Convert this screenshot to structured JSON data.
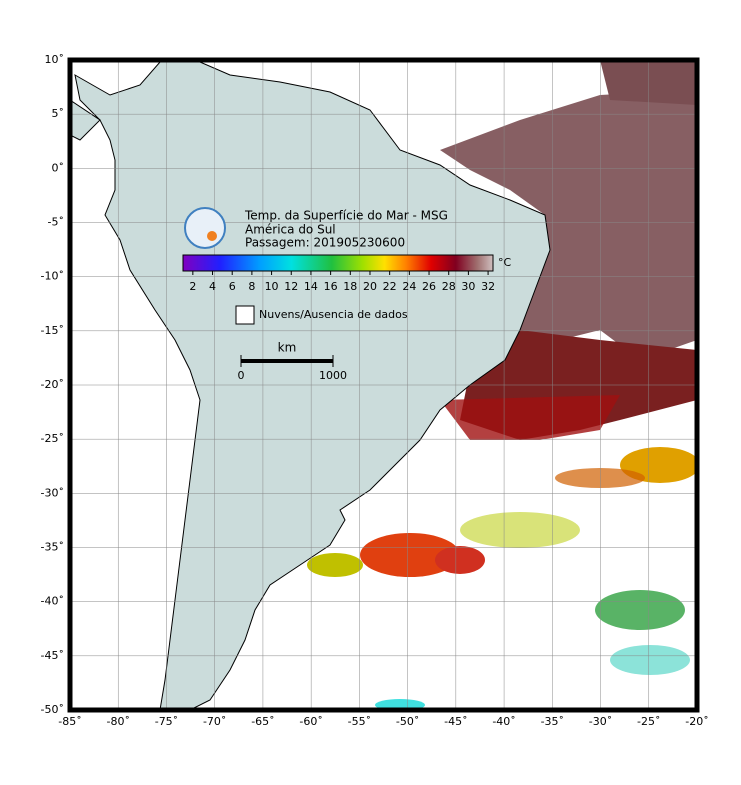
{
  "map": {
    "title": [
      "Temp. da Superfície do Mar - MSG",
      "América do Sul",
      "Passagem: 201905230600"
    ],
    "xlim": [
      -85,
      -20
    ],
    "ylim": [
      -50,
      10
    ],
    "xticks": [
      {
        "value": -85,
        "label": "-85˚"
      },
      {
        "value": -80,
        "label": "-80˚"
      },
      {
        "value": -75,
        "label": "-75˚"
      },
      {
        "value": -70,
        "label": "-70˚"
      },
      {
        "value": -65,
        "label": "-65˚"
      },
      {
        "value": -60,
        "label": "-60˚"
      },
      {
        "value": -55,
        "label": "-55˚"
      },
      {
        "value": -50,
        "label": "-50˚"
      },
      {
        "value": -45,
        "label": "-45˚"
      },
      {
        "value": -40,
        "label": "-40˚"
      },
      {
        "value": -35,
        "label": "-35˚"
      },
      {
        "value": -30,
        "label": "-30˚"
      },
      {
        "value": -25,
        "label": "-25˚"
      },
      {
        "value": -20,
        "label": "-20˚"
      }
    ],
    "yticks": [
      {
        "value": 10,
        "label": "10˚"
      },
      {
        "value": 5,
        "label": "5˚"
      },
      {
        "value": 0,
        "label": "0˚"
      },
      {
        "value": -5,
        "label": "-5˚"
      },
      {
        "value": -10,
        "label": "-10˚"
      },
      {
        "value": -15,
        "label": "-15˚"
      },
      {
        "value": -20,
        "label": "-20˚"
      },
      {
        "value": -25,
        "label": "-25˚"
      },
      {
        "value": -30,
        "label": "-30˚"
      },
      {
        "value": -35,
        "label": "-35˚"
      },
      {
        "value": -40,
        "label": "-40˚"
      },
      {
        "value": -45,
        "label": "-45˚"
      },
      {
        "value": -50,
        "label": "-50˚"
      }
    ],
    "colorbar": {
      "unit": "°C",
      "lim": [
        1,
        32.5
      ],
      "ticks": [
        2,
        4,
        6,
        8,
        10,
        12,
        14,
        16,
        18,
        20,
        22,
        24,
        26,
        28,
        30,
        32
      ]
    },
    "legend": "Nuvens/Ausencia de dados",
    "scale": {
      "unit": "km",
      "ticks": [
        0,
        1000
      ]
    }
  }
}
